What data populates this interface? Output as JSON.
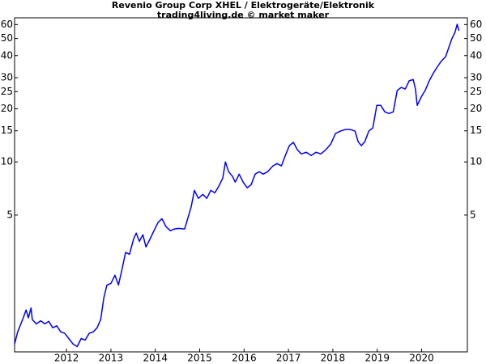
{
  "chart_data": {
    "type": "line",
    "title": "Revenio Group Corp XHEL / Elektrogeräte/Elektronik",
    "subtitle": "trading4living.de © market maker",
    "log_scale_y": true,
    "xlim": [
      2010.83,
      2021.03
    ],
    "xticks": [
      2012,
      2013,
      2014,
      2015,
      2016,
      2017,
      2018,
      2019,
      2020
    ],
    "ylim": [
      0.84,
      65.5
    ],
    "yticks": [
      5,
      10,
      15,
      20,
      25,
      30,
      40,
      50,
      60
    ],
    "series": [
      {
        "color": "#0000ff",
        "x": [
          2010.83,
          2010.9,
          2011.01,
          2011.09,
          2011.14,
          2011.2,
          2011.23,
          2011.32,
          2011.42,
          2011.51,
          2011.6,
          2011.69,
          2011.78,
          2011.87,
          2011.96,
          2012.05,
          2012.15,
          2012.24,
          2012.33,
          2012.42,
          2012.51,
          2012.6,
          2012.69,
          2012.77,
          2012.84,
          2012.91,
          2013.0,
          2013.09,
          2013.17,
          2013.24,
          2013.33,
          2013.42,
          2013.51,
          2013.57,
          2013.64,
          2013.72,
          2013.79,
          2013.88,
          2013.97,
          2014.06,
          2014.15,
          2014.24,
          2014.34,
          2014.43,
          2014.52,
          2014.66,
          2014.74,
          2014.81,
          2014.88,
          2014.97,
          2015.07,
          2015.16,
          2015.25,
          2015.34,
          2015.43,
          2015.52,
          2015.58,
          2015.65,
          2015.74,
          2015.8,
          2015.89,
          2015.98,
          2016.07,
          2016.16,
          2016.25,
          2016.34,
          2016.43,
          2016.53,
          2016.65,
          2016.74,
          2016.84,
          2016.93,
          2017.02,
          2017.11,
          2017.2,
          2017.29,
          2017.4,
          2017.51,
          2017.62,
          2017.73,
          2017.84,
          2017.95,
          2018.06,
          2018.17,
          2018.28,
          2018.39,
          2018.5,
          2018.57,
          2018.64,
          2018.72,
          2018.81,
          2018.9,
          2018.99,
          2019.08,
          2019.17,
          2019.26,
          2019.36,
          2019.45,
          2019.54,
          2019.63,
          2019.72,
          2019.81,
          2019.86,
          2019.9,
          2019.99,
          2020.08,
          2020.17,
          2020.27,
          2020.36,
          2020.45,
          2020.54,
          2020.59,
          2020.68,
          2020.75,
          2020.8,
          2020.84
        ],
        "values": [
          0.93,
          1.09,
          1.28,
          1.45,
          1.31,
          1.49,
          1.28,
          1.21,
          1.26,
          1.21,
          1.25,
          1.15,
          1.18,
          1.09,
          1.07,
          1.0,
          0.93,
          0.9,
          1.0,
          0.98,
          1.07,
          1.09,
          1.15,
          1.28,
          1.7,
          2.01,
          2.05,
          2.28,
          2.01,
          2.4,
          3.07,
          3.0,
          3.66,
          3.95,
          3.55,
          3.87,
          3.3,
          3.66,
          4.08,
          4.53,
          4.77,
          4.3,
          4.08,
          4.17,
          4.2,
          4.17,
          4.87,
          5.59,
          6.9,
          6.22,
          6.55,
          6.22,
          6.9,
          6.68,
          7.28,
          8.1,
          10.0,
          8.81,
          8.27,
          7.68,
          8.53,
          7.68,
          7.13,
          7.44,
          8.53,
          8.81,
          8.53,
          8.81,
          9.49,
          9.79,
          9.49,
          10.88,
          12.36,
          12.9,
          11.73,
          11.1,
          11.35,
          10.88,
          11.35,
          11.1,
          11.73,
          12.6,
          14.48,
          14.95,
          15.26,
          15.26,
          14.95,
          13.02,
          12.36,
          13.02,
          14.95,
          15.6,
          20.9,
          20.9,
          19.2,
          18.8,
          19.2,
          25.4,
          26.4,
          25.9,
          28.8,
          29.3,
          25.9,
          20.9,
          23.3,
          25.4,
          28.8,
          32.0,
          34.8,
          37.4,
          39.4,
          42.9,
          49.8,
          54.2,
          60.2,
          55.3
        ]
      }
    ]
  }
}
